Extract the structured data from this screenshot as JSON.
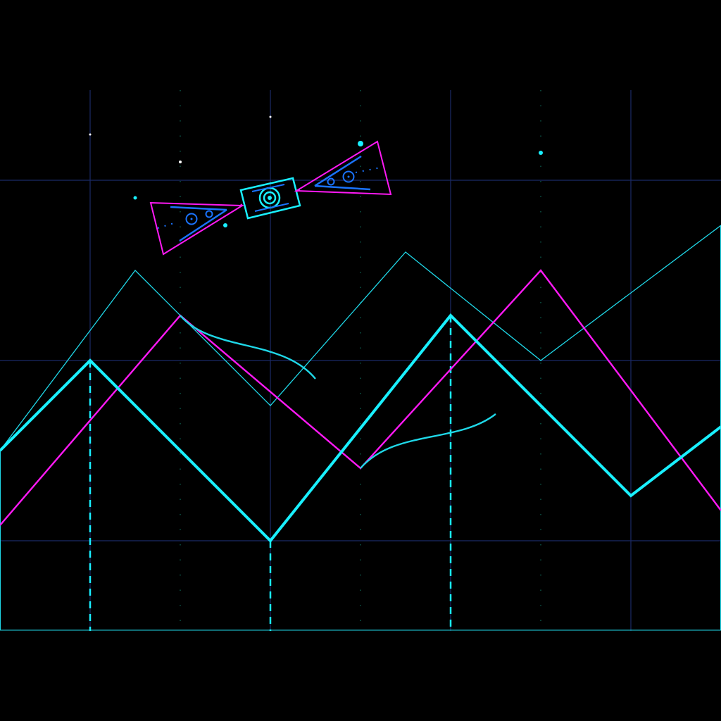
{
  "palette": {
    "background": "#000000",
    "grid": "#1a2a66",
    "grid_minor": "#0f6b5a",
    "cyan": "#19f0ff",
    "cyan_dim": "#1fd8e8",
    "magenta": "#ff19f5",
    "blue": "#1a73ff",
    "white": "#ffffff"
  },
  "icons": {
    "satellite": "satellite-icon",
    "stars": "star-dot-icon"
  },
  "chart_data": {
    "type": "line",
    "title": "",
    "xlabel": "",
    "ylabel": "",
    "grid": true,
    "legend": "none",
    "x": [
      0,
      1,
      2,
      3,
      4,
      5,
      6,
      7,
      8
    ],
    "xlim": [
      0,
      8
    ],
    "ylim": [
      0,
      6
    ],
    "series": [
      {
        "values": [
          2.0,
          3.0,
          null,
          1.0,
          null,
          3.5,
          null,
          1.5,
          2.25
        ],
        "style": "thick-cyan"
      },
      {
        "values": [
          1.5,
          null,
          3.5,
          null,
          1.8,
          null,
          4.0,
          null,
          1.35
        ],
        "style": "magenta"
      },
      {
        "values": [
          2.0,
          null,
          null,
          null,
          null,
          null,
          null,
          null,
          4.6
        ],
        "style": "thin-cyan"
      }
    ],
    "dashed_drops": [
      1,
      3,
      5
    ],
    "note_points": []
  }
}
